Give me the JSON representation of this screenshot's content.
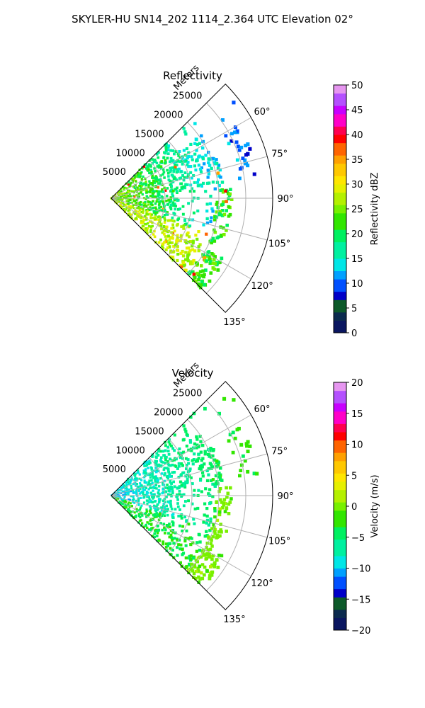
{
  "figure": {
    "suptitle": "SKYLER-HU  SN14_202  1114_2.364 UTC Elevation 02°"
  },
  "chart_data": [
    {
      "type": "heatmap",
      "projection": "polar sector (PPI)",
      "title": "Reflectivity",
      "range_label": "Meters",
      "r_ticks": [
        5000,
        10000,
        15000,
        20000,
        25000
      ],
      "r_max": 30000,
      "theta_ticks_deg": [
        60,
        75,
        90,
        105,
        120,
        135
      ],
      "theta_range_deg": [
        45,
        135
      ],
      "grid": true,
      "colorbar": {
        "label": "Reflectivity dBZ",
        "vmin": 0,
        "vmax": 50,
        "ticks": [
          0,
          5,
          10,
          15,
          20,
          25,
          30,
          35,
          40,
          45,
          50
        ]
      },
      "echo_summary": "dense echo 0–20000 m over 45–115°, mostly 15–27 dBZ near the radar; thin line of echo near 20000–22000 m around 90–110°; echo near 25000–27000 m around 60–80°; cells up to ~38 dBZ near 115° at 23000 m",
      "colors": {
        "low": "#0c1a6e",
        "mid_low": "#00e6c8",
        "mid": "#3fdc00",
        "mid_high": "#ffe600",
        "high": "#ff0000",
        "top": "#f2c8f2"
      }
    },
    {
      "type": "heatmap",
      "projection": "polar sector (PPI)",
      "title": "Velocity",
      "range_label": "Meters",
      "r_ticks": [
        5000,
        10000,
        15000,
        20000,
        25000
      ],
      "r_max": 30000,
      "theta_ticks_deg": [
        60,
        75,
        90,
        105,
        120,
        135
      ],
      "theta_range_deg": [
        45,
        135
      ],
      "grid": true,
      "colorbar": {
        "label": "Velocity (m/s)",
        "vmin": -20,
        "vmax": 20,
        "ticks": [
          -20,
          -15,
          -10,
          -5,
          0,
          5,
          10,
          15,
          20
        ]
      },
      "echo_summary": "mostly -12 to -6 m/s near radar, -6 to -2 m/s at longer range; near-zero velocities along the distant line of echo",
      "colors": {
        "low": "#0c1a6e",
        "mid_low": "#00e6c8",
        "mid": "#3fdc00",
        "mid_high": "#ffe600",
        "high": "#ff0000",
        "top": "#f2c8f2"
      }
    }
  ]
}
